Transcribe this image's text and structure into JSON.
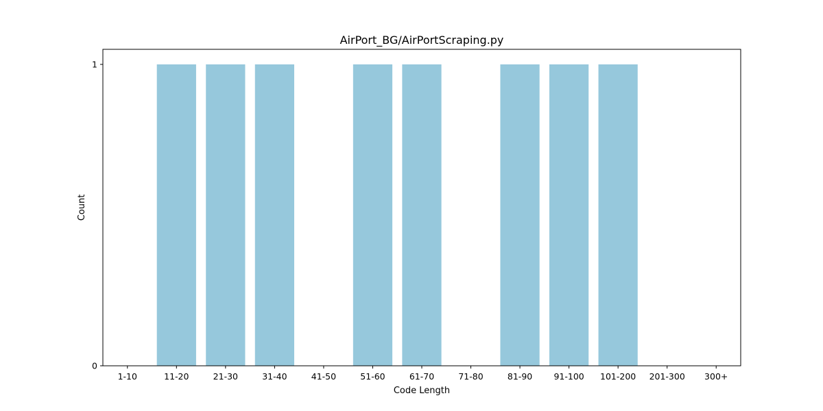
{
  "chart_data": {
    "type": "bar",
    "title": "AirPort_BG/AirPortScraping.py",
    "xlabel": "Code Length",
    "ylabel": "Count",
    "categories": [
      "1-10",
      "11-20",
      "21-30",
      "31-40",
      "41-50",
      "51-60",
      "61-70",
      "71-80",
      "81-90",
      "91-100",
      "101-200",
      "201-300",
      "300+"
    ],
    "values": [
      0,
      1,
      1,
      1,
      0,
      1,
      1,
      0,
      1,
      1,
      1,
      0,
      0
    ],
    "ylim": [
      0,
      1.05
    ],
    "yticks": [
      0,
      1
    ],
    "bar_color": "#96c8dc",
    "grid": false,
    "legend": "none"
  }
}
